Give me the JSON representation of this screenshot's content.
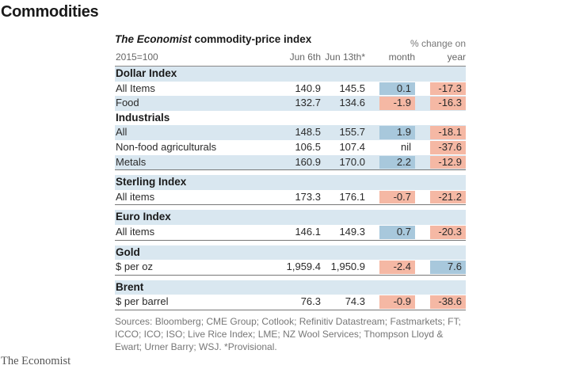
{
  "title": "Commodities",
  "subtitle_italic": "The Economist",
  "subtitle_rest": " commodity-price index",
  "base": "2015=100",
  "col_jun6": "Jun 6th",
  "col_jun13": "Jun 13th*",
  "pct_change_header": "% change on",
  "col_month": "month",
  "col_year": "year",
  "colors": {
    "positive": "#a8c8dc",
    "negative": "#f5b8a4",
    "row_band": "#d9e7f0"
  },
  "sections": [
    {
      "rows": [
        {
          "type": "group",
          "label": "Dollar Index",
          "band": true
        },
        {
          "type": "item",
          "label": "All Items",
          "jun6": "140.9",
          "jun13": "145.5",
          "month": "0.1",
          "year": "-17.3",
          "band": false
        },
        {
          "type": "item",
          "label": "Food",
          "jun6": "132.7",
          "jun13": "134.6",
          "month": "-1.9",
          "year": "-16.3",
          "band": true
        },
        {
          "type": "group",
          "label": "Industrials",
          "band": false
        },
        {
          "type": "item",
          "label": "All",
          "jun6": "148.5",
          "jun13": "155.7",
          "month": "1.9",
          "year": "-18.1",
          "band": true
        },
        {
          "type": "item",
          "label": "Non-food agriculturals",
          "jun6": "106.5",
          "jun13": "107.4",
          "month": "nil",
          "year": "-37.6",
          "band": false
        },
        {
          "type": "item",
          "label": "Metals",
          "jun6": "160.9",
          "jun13": "170.0",
          "month": "2.2",
          "year": "-12.9",
          "band": true
        }
      ]
    },
    {
      "rows": [
        {
          "type": "group",
          "label": "Sterling Index",
          "band": true
        },
        {
          "type": "item",
          "label": "All items",
          "jun6": "173.3",
          "jun13": "176.1",
          "month": "-0.7",
          "year": "-21.2",
          "band": false
        }
      ]
    },
    {
      "rows": [
        {
          "type": "group",
          "label": "Euro Index",
          "band": true
        },
        {
          "type": "item",
          "label": "All items",
          "jun6": "146.1",
          "jun13": "149.3",
          "month": "0.7",
          "year": "-20.3",
          "band": false
        }
      ]
    },
    {
      "rows": [
        {
          "type": "group",
          "label": "Gold",
          "band": true
        },
        {
          "type": "item",
          "label": "$ per oz",
          "jun6": "1,959.4",
          "jun13": "1,950.9",
          "month": "-2.4",
          "year": "7.6",
          "band": false
        }
      ]
    },
    {
      "rows": [
        {
          "type": "group",
          "label": "Brent",
          "band": true
        },
        {
          "type": "item",
          "label": "$ per barrel",
          "jun6": "76.3",
          "jun13": "74.3",
          "month": "-0.9",
          "year": "-38.6",
          "band": false
        }
      ]
    }
  ],
  "footnote": "Sources: Bloomberg; CME Group; Cotlook; Refinitiv Datastream; Fastmarkets; FT; ICCO; ICO; ISO; Live Rice Index; LME; NZ Wool Services; Thompson Lloyd & Ewart; Urner Barry; WSJ.  *Provisional.",
  "logo": "The Economist"
}
